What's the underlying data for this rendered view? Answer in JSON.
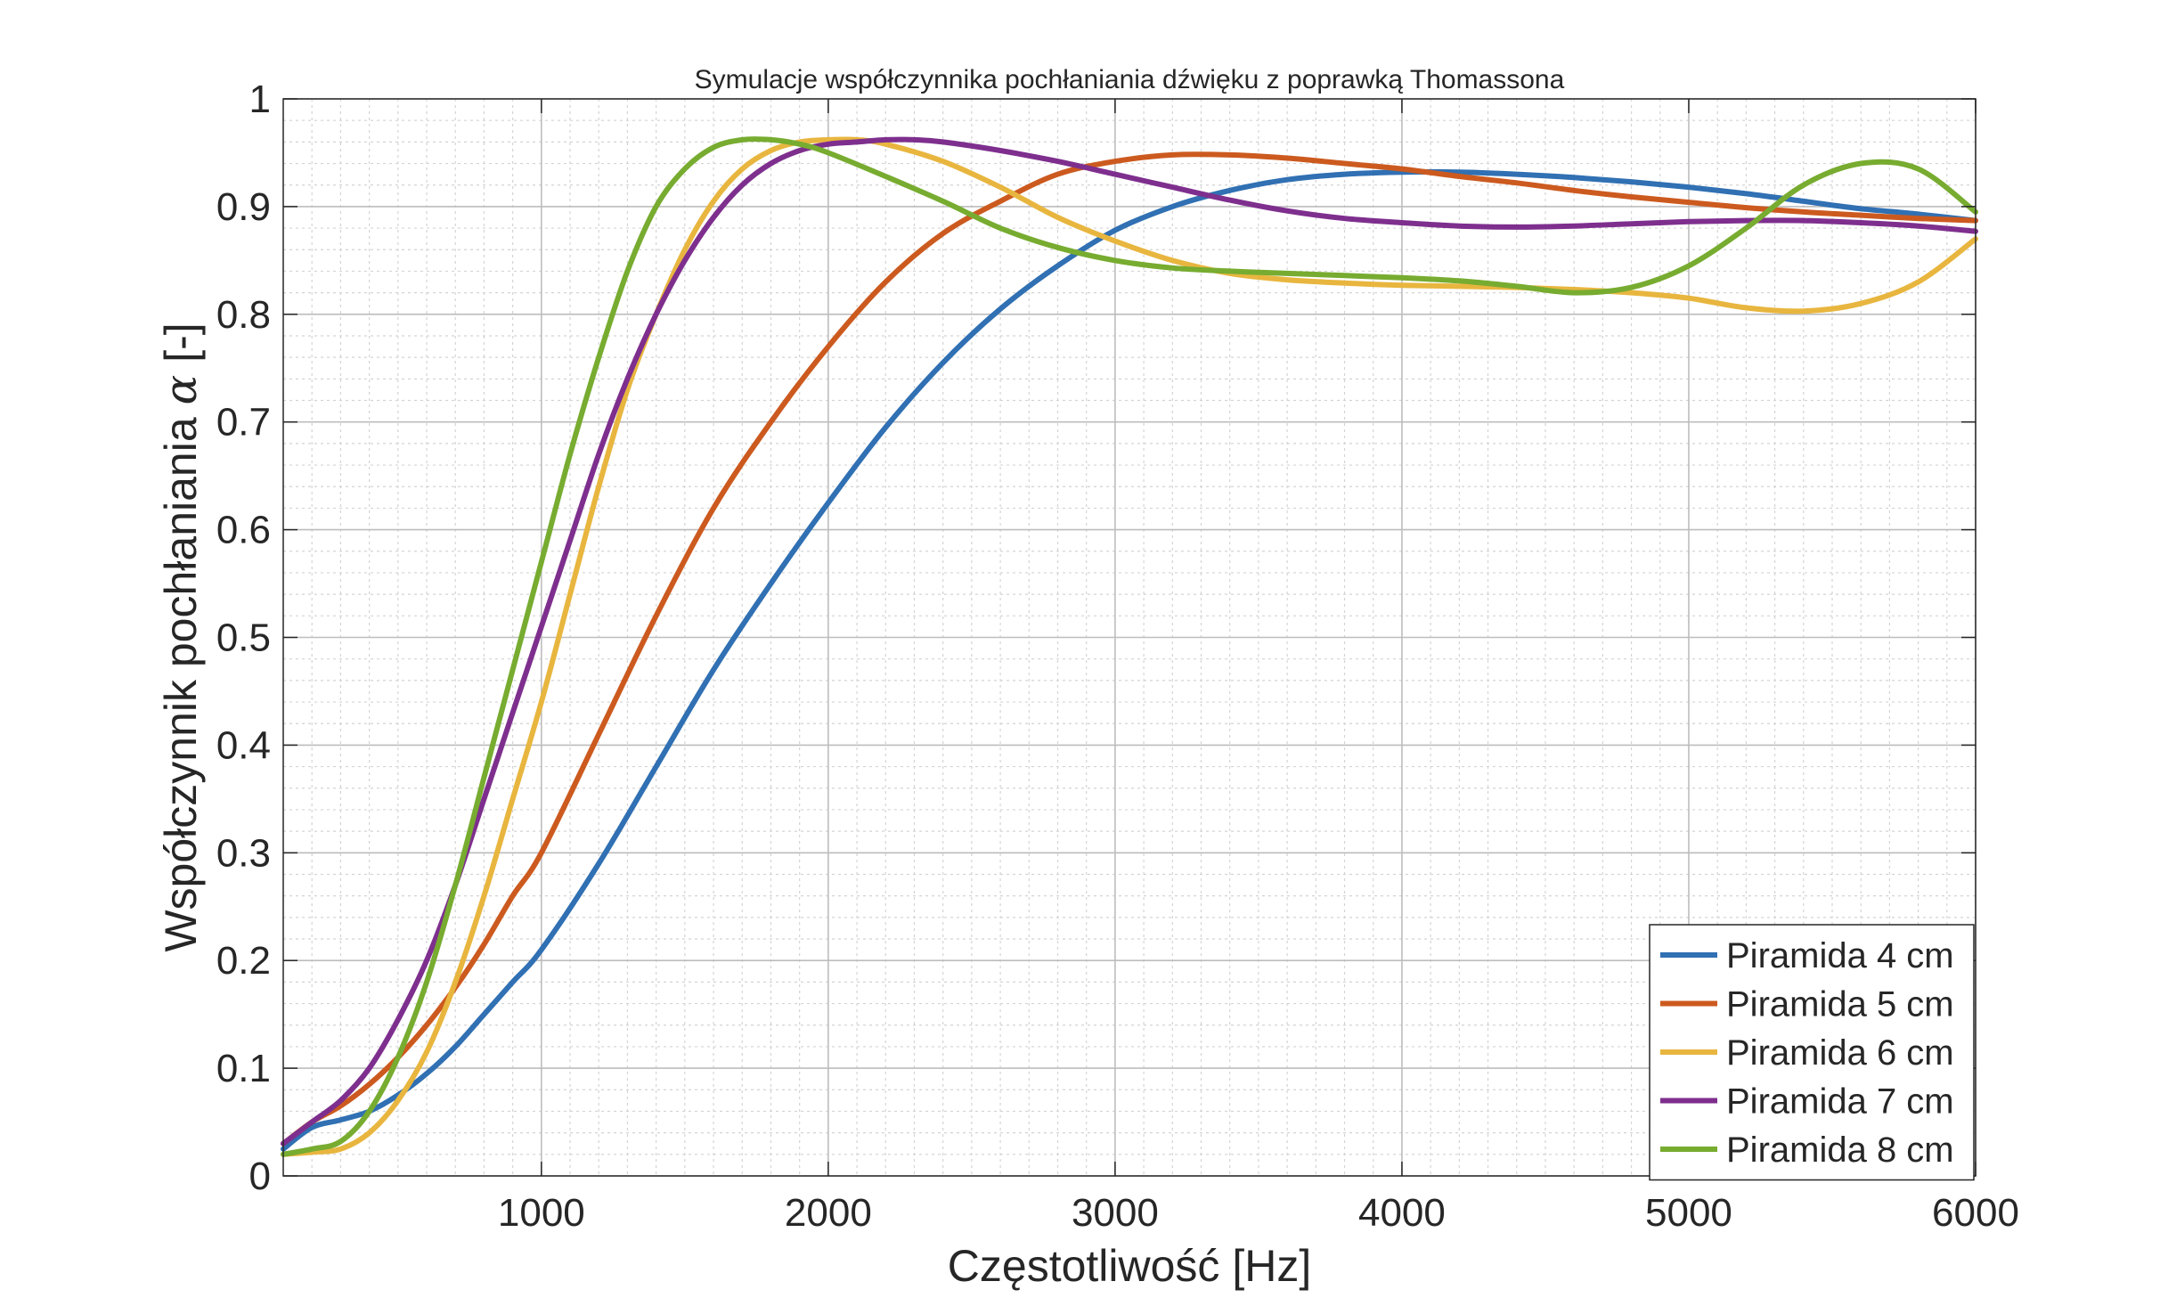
{
  "chart_data": {
    "type": "line",
    "title": "Symulacje współczynnika pochłaniania dźwięku z poprawką Thomassona",
    "xlabel": "Częstotliwość [Hz]",
    "ylabel_text": "Współczynnik pochłaniania ",
    "ylabel_symbol": "α",
    "ylabel_unit": " [-]",
    "xlim": [
      100,
      6000
    ],
    "ylim": [
      0,
      1
    ],
    "xticks": [
      1000,
      2000,
      3000,
      4000,
      5000,
      6000
    ],
    "xtick_labels": [
      "1000",
      "2000",
      "3000",
      "4000",
      "5000",
      "6000"
    ],
    "yticks": [
      0,
      0.1,
      0.2,
      0.3,
      0.4,
      0.5,
      0.6,
      0.7,
      0.8,
      0.9,
      1
    ],
    "ytick_labels": [
      "0",
      "0.1",
      "0.2",
      "0.3",
      "0.4",
      "0.5",
      "0.6",
      "0.7",
      "0.8",
      "0.9",
      "1"
    ],
    "grid": true,
    "minor_grid": true,
    "legend_position": "bottom-right",
    "series": [
      {
        "name": "Piramida 4 cm",
        "color": "#3070B3",
        "x": [
          100,
          200,
          300,
          400,
          500,
          600,
          700,
          800,
          900,
          1000,
          1200,
          1400,
          1600,
          1800,
          2000,
          2200,
          2400,
          2600,
          2800,
          3000,
          3200,
          3400,
          3600,
          3800,
          4000,
          4200,
          4400,
          4600,
          4800,
          5000,
          5200,
          5400,
          5600,
          5800,
          6000
        ],
        "y": [
          0.025,
          0.045,
          0.052,
          0.06,
          0.075,
          0.095,
          0.12,
          0.15,
          0.18,
          0.21,
          0.29,
          0.38,
          0.47,
          0.55,
          0.625,
          0.695,
          0.755,
          0.805,
          0.845,
          0.878,
          0.9,
          0.915,
          0.925,
          0.93,
          0.932,
          0.932,
          0.93,
          0.927,
          0.923,
          0.918,
          0.912,
          0.905,
          0.898,
          0.893,
          0.887
        ]
      },
      {
        "name": "Piramida 5 cm",
        "color": "#CC5A1F",
        "x": [
          100,
          200,
          300,
          400,
          500,
          600,
          700,
          800,
          900,
          1000,
          1200,
          1400,
          1600,
          1800,
          2000,
          2200,
          2400,
          2600,
          2800,
          3000,
          3200,
          3400,
          3600,
          3800,
          4000,
          4200,
          4400,
          4600,
          4800,
          5000,
          5200,
          5400,
          5600,
          5800,
          6000
        ],
        "y": [
          0.03,
          0.05,
          0.065,
          0.085,
          0.11,
          0.14,
          0.175,
          0.215,
          0.26,
          0.3,
          0.41,
          0.52,
          0.62,
          0.7,
          0.77,
          0.83,
          0.875,
          0.905,
          0.93,
          0.942,
          0.948,
          0.948,
          0.945,
          0.94,
          0.935,
          0.928,
          0.922,
          0.915,
          0.909,
          0.904,
          0.899,
          0.895,
          0.892,
          0.889,
          0.887
        ]
      },
      {
        "name": "Piramida 6 cm",
        "color": "#E8B63F",
        "x": [
          100,
          200,
          300,
          400,
          500,
          600,
          700,
          800,
          900,
          1000,
          1100,
          1200,
          1300,
          1400,
          1500,
          1600,
          1700,
          1800,
          1900,
          2000,
          2100,
          2200,
          2400,
          2600,
          2800,
          3000,
          3200,
          3400,
          3600,
          3800,
          4000,
          4200,
          4400,
          4600,
          4800,
          5000,
          5200,
          5400,
          5600,
          5800,
          6000
        ],
        "y": [
          0.02,
          0.022,
          0.025,
          0.04,
          0.07,
          0.115,
          0.18,
          0.26,
          0.35,
          0.44,
          0.54,
          0.64,
          0.73,
          0.8,
          0.86,
          0.905,
          0.935,
          0.952,
          0.96,
          0.962,
          0.962,
          0.958,
          0.942,
          0.918,
          0.89,
          0.868,
          0.85,
          0.838,
          0.832,
          0.829,
          0.827,
          0.826,
          0.825,
          0.823,
          0.82,
          0.815,
          0.806,
          0.803,
          0.81,
          0.83,
          0.87
        ]
      },
      {
        "name": "Piramida 7 cm",
        "color": "#7E2F8E",
        "x": [
          100,
          200,
          300,
          400,
          500,
          600,
          700,
          800,
          900,
          1000,
          1100,
          1200,
          1300,
          1400,
          1500,
          1600,
          1700,
          1800,
          1900,
          2000,
          2100,
          2200,
          2300,
          2400,
          2600,
          2800,
          3000,
          3200,
          3400,
          3600,
          3800,
          4000,
          4200,
          4400,
          4600,
          4800,
          5000,
          5200,
          5400,
          5600,
          5800,
          6000
        ],
        "y": [
          0.03,
          0.05,
          0.07,
          0.1,
          0.145,
          0.2,
          0.27,
          0.35,
          0.43,
          0.51,
          0.59,
          0.67,
          0.74,
          0.8,
          0.85,
          0.89,
          0.92,
          0.94,
          0.952,
          0.958,
          0.96,
          0.962,
          0.962,
          0.96,
          0.952,
          0.942,
          0.93,
          0.918,
          0.906,
          0.896,
          0.889,
          0.885,
          0.882,
          0.881,
          0.882,
          0.884,
          0.886,
          0.887,
          0.887,
          0.885,
          0.882,
          0.877
        ]
      },
      {
        "name": "Piramida 8 cm",
        "color": "#77AC30",
        "x": [
          100,
          200,
          300,
          400,
          500,
          600,
          700,
          800,
          900,
          1000,
          1100,
          1200,
          1300,
          1400,
          1500,
          1600,
          1700,
          1800,
          1900,
          2000,
          2200,
          2400,
          2600,
          2800,
          3000,
          3200,
          3400,
          3600,
          3800,
          4000,
          4200,
          4400,
          4600,
          4800,
          5000,
          5200,
          5400,
          5600,
          5800,
          6000
        ],
        "y": [
          0.02,
          0.025,
          0.032,
          0.06,
          0.11,
          0.18,
          0.27,
          0.37,
          0.47,
          0.57,
          0.67,
          0.76,
          0.84,
          0.9,
          0.935,
          0.955,
          0.962,
          0.962,
          0.958,
          0.95,
          0.928,
          0.905,
          0.88,
          0.862,
          0.85,
          0.843,
          0.84,
          0.838,
          0.836,
          0.834,
          0.831,
          0.826,
          0.82,
          0.825,
          0.845,
          0.88,
          0.92,
          0.94,
          0.935,
          0.895
        ]
      }
    ]
  }
}
